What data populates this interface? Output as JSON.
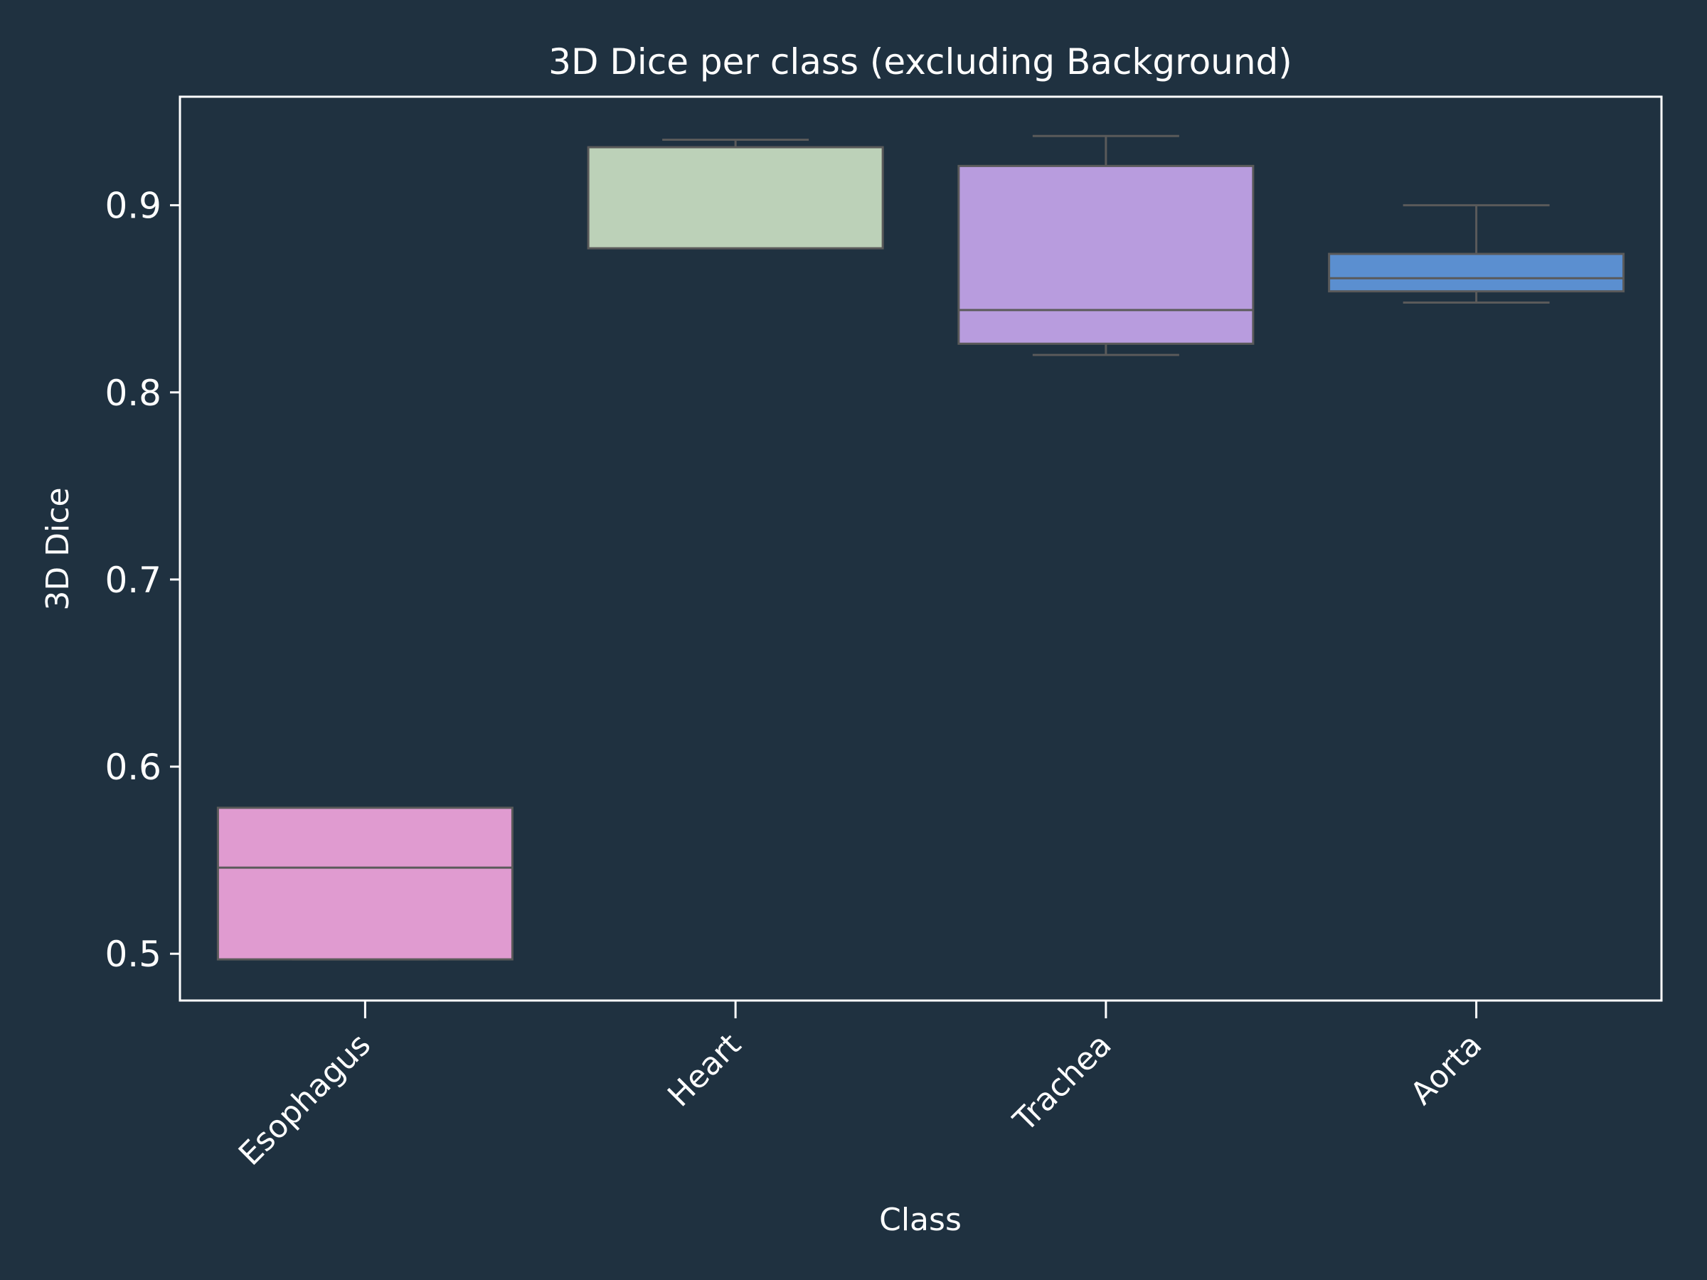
{
  "colors": {
    "background": "#1f3140",
    "axis": "#ffffff",
    "text": "#ffffff",
    "box_edge": "#5a5a5a",
    "whisker": "#5a5a5a"
  },
  "chart_data": {
    "type": "box",
    "title": "3D Dice per class (excluding Background)",
    "xlabel": "Class",
    "ylabel": "3D Dice",
    "ylim": [
      0.475,
      0.958
    ],
    "yticks": [
      0.5,
      0.6,
      0.7,
      0.8,
      0.9
    ],
    "ytick_labels": [
      "0.5",
      "0.6",
      "0.7",
      "0.8",
      "0.9"
    ],
    "categories": [
      "Esophagus",
      "Heart",
      "Trachea",
      "Aorta"
    ],
    "grid": false,
    "legend": "none",
    "boxes": [
      {
        "category": "Esophagus",
        "whisker_low": 0.497,
        "q1": 0.497,
        "median": 0.546,
        "q3": 0.578,
        "whisker_high": 0.578,
        "color": "#e09bd0"
      },
      {
        "category": "Heart",
        "whisker_low": 0.877,
        "q1": 0.877,
        "median": 0.931,
        "q3": 0.931,
        "whisker_high": 0.935,
        "color": "#bcd1b8"
      },
      {
        "category": "Trachea",
        "whisker_low": 0.82,
        "q1": 0.826,
        "median": 0.844,
        "q3": 0.921,
        "whisker_high": 0.937,
        "color": "#b89cde"
      },
      {
        "category": "Aorta",
        "whisker_low": 0.848,
        "q1": 0.854,
        "median": 0.861,
        "q3": 0.874,
        "whisker_high": 0.9,
        "color": "#5b8fd0"
      }
    ]
  }
}
